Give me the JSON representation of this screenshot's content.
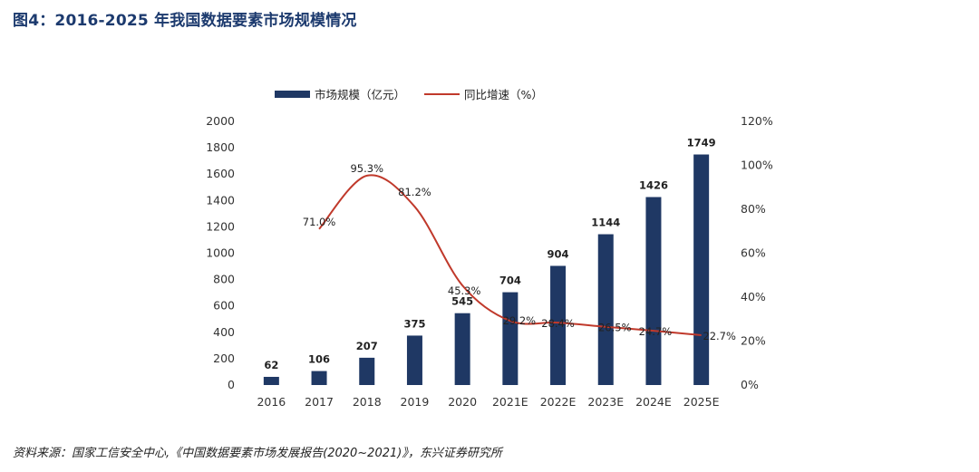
{
  "figure": {
    "title": "图4：2016-2025 年我国数据要素市场规模情况",
    "source": "资料来源：国家工信安全中心,《中国数据要素市场发展报告(2020~2021)》，东兴证券研究所"
  },
  "colors": {
    "bar": "#1f3864",
    "line": "#c0392b",
    "title": "#1c3a6e"
  },
  "chart_data": {
    "type": "bar",
    "categories": [
      "2016",
      "2017",
      "2018",
      "2019",
      "2020",
      "2021E",
      "2022E",
      "2023E",
      "2024E",
      "2025E"
    ],
    "series": [
      {
        "name": "市场规模（亿元）",
        "type": "bar",
        "axis": "left",
        "values": [
          62,
          106,
          207,
          375,
          545,
          704,
          904,
          1144,
          1426,
          1749
        ],
        "labels": [
          "62",
          "106",
          "207",
          "375",
          "545",
          "704",
          "904",
          "1144",
          "1426",
          "1749"
        ]
      },
      {
        "name": "同比增速（%）",
        "type": "line",
        "axis": "right",
        "values": [
          null,
          71.0,
          95.3,
          81.2,
          45.3,
          29.2,
          28.4,
          26.5,
          24.7,
          22.7
        ],
        "labels": [
          "",
          "71.0%",
          "95.3%",
          "81.2%",
          "45.3%",
          "29.2%",
          "28.4%",
          "26.5%",
          "24.7%",
          "22.7%"
        ]
      }
    ],
    "y_left": {
      "min": 0,
      "max": 2000,
      "ticks": [
        "0",
        "200",
        "400",
        "600",
        "800",
        "1000",
        "1200",
        "1400",
        "1600",
        "1800",
        "2000"
      ]
    },
    "y_right": {
      "min": 0,
      "max": 120,
      "ticks": [
        "0%",
        "20%",
        "40%",
        "60%",
        "80%",
        "100%",
        "120%"
      ]
    },
    "legend": "top",
    "grid": false
  }
}
